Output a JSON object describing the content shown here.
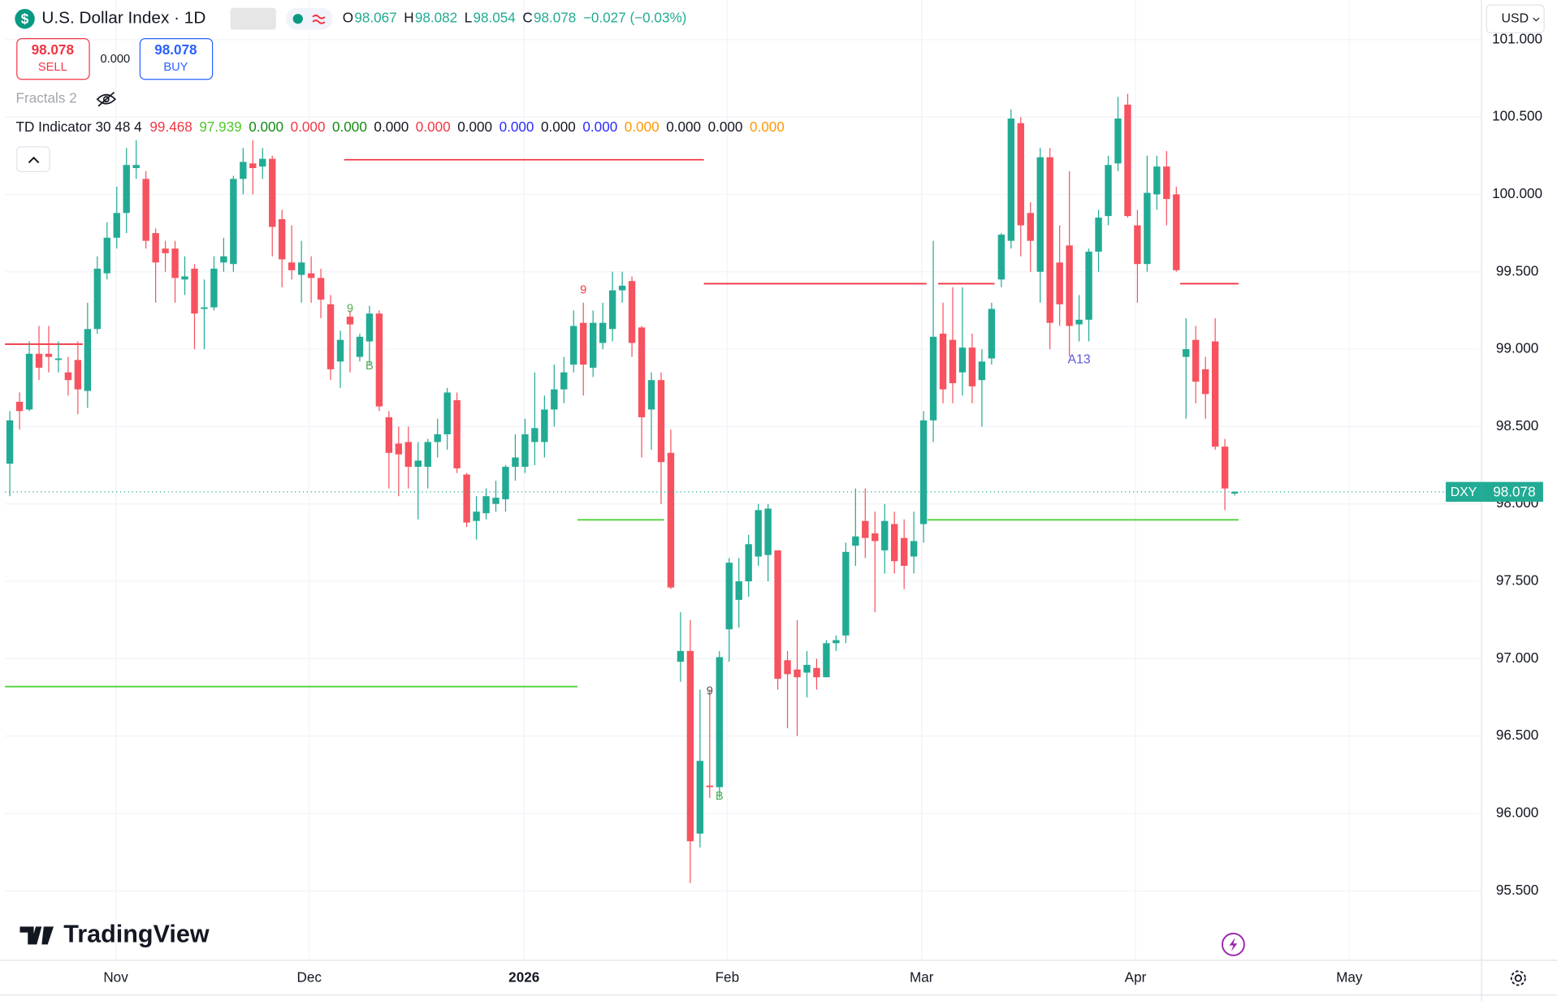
{
  "header": {
    "symbol": "U.S. Dollar Index · 1D",
    "ohlc_labels": [
      "O",
      "H",
      "L",
      "C"
    ],
    "change": "−0.027 (−0.03%)",
    "currency": "USD"
  },
  "trade": {
    "sell_price": "98.078",
    "sell": "SELL",
    "spread": "0.000",
    "buy_price": "98.078",
    "buy": "BUY"
  },
  "indicators": {
    "fractals": "Fractals 2",
    "td_name": "TD Indicator 30 48 4",
    "td_values": [
      {
        "text": "99.468",
        "color": "#f23645"
      },
      {
        "text": "97.939",
        "color": "#4cc92a"
      },
      {
        "text": "0.000",
        "color": "#138a13"
      },
      {
        "text": "0.000",
        "color": "#f23645"
      },
      {
        "text": "0.000",
        "color": "#138a13"
      },
      {
        "text": "0.000",
        "color": "#131722"
      },
      {
        "text": "0.000",
        "color": "#f23645"
      },
      {
        "text": "0.000",
        "color": "#131722"
      },
      {
        "text": "0.000",
        "color": "#2a2aff"
      },
      {
        "text": "0.000",
        "color": "#131722"
      },
      {
        "text": "0.000",
        "color": "#2a2aff"
      },
      {
        "text": "0.000",
        "color": "#ff9800"
      },
      {
        "text": "0.000",
        "color": "#131722"
      },
      {
        "text": "0.000",
        "color": "#131722"
      },
      {
        "text": "0.000",
        "color": "#ff9800"
      }
    ]
  },
  "logo": "TradingView",
  "symbol_tag": "DXY",
  "chart_data": {
    "type": "candlestick",
    "up_color": "#22ab94",
    "down_color": "#f7525f",
    "grid": true,
    "open": [
      98.26,
      98.66,
      98.61,
      98.97,
      98.97,
      98.93,
      98.85,
      98.93,
      98.73,
      99.13,
      99.49,
      99.72,
      99.88,
      100.17,
      100.1,
      99.75,
      99.65,
      99.65,
      99.45,
      99.52,
      99.26,
      99.27,
      99.56,
      99.55,
      100.1,
      100.2,
      100.18,
      100.23,
      99.84,
      99.56,
      99.48,
      99.49,
      99.46,
      99.29,
      98.92,
      99.21,
      98.95,
      99.05,
      99.23,
      98.56,
      98.39,
      98.4,
      98.24,
      98.24,
      98.4,
      98.45,
      98.67,
      98.19,
      97.89,
      97.94,
      98.0,
      98.03,
      98.24,
      98.24,
      98.4,
      98.4,
      98.61,
      98.74,
      98.9,
      99.17,
      98.88,
      99.04,
      99.13,
      99.38,
      99.44,
      99.14,
      98.61,
      98.8,
      98.33,
      96.98,
      97.05,
      95.87,
      96.18,
      96.17,
      97.19,
      97.38,
      97.5,
      97.66,
      97.67,
      97.7,
      96.99,
      96.93,
      96.91,
      96.94,
      96.88,
      97.1,
      97.15,
      97.73,
      97.89,
      97.81,
      97.7,
      97.87,
      97.78,
      97.66,
      97.87,
      98.54,
      99.1,
      99.06,
      98.85,
      99.01,
      98.8,
      98.94,
      99.45,
      99.7,
      100.46,
      99.88,
      99.5,
      100.24,
      99.56,
      99.67,
      99.16,
      99.19,
      99.63,
      99.86,
      100.2,
      100.58,
      99.8,
      99.55,
      100.0,
      100.18,
      100.0,
      98.95,
      99.06,
      98.87,
      99.05,
      98.37,
      98.067
    ],
    "high": [
      98.6,
      98.72,
      99.05,
      99.15,
      99.15,
      99.05,
      98.95,
      99.05,
      99.3,
      99.6,
      99.82,
      100.05,
      100.3,
      100.35,
      100.15,
      99.78,
      99.7,
      99.7,
      99.6,
      99.55,
      99.45,
      99.6,
      99.72,
      100.12,
      100.3,
      100.35,
      100.3,
      100.25,
      99.9,
      99.8,
      99.7,
      99.6,
      99.52,
      99.35,
      99.12,
      99.25,
      99.1,
      99.28,
      99.25,
      98.6,
      98.5,
      98.5,
      98.4,
      98.42,
      98.55,
      98.75,
      98.72,
      98.2,
      98.05,
      98.1,
      98.15,
      98.25,
      98.45,
      98.55,
      98.85,
      98.7,
      98.9,
      98.95,
      99.25,
      99.3,
      99.25,
      99.3,
      99.5,
      99.5,
      99.47,
      99.15,
      98.85,
      98.85,
      98.48,
      97.3,
      97.25,
      96.8,
      96.8,
      97.05,
      97.65,
      97.65,
      97.8,
      98.0,
      98.0,
      97.7,
      97.05,
      97.25,
      97.05,
      97.0,
      97.12,
      97.15,
      97.75,
      98.1,
      98.1,
      97.95,
      98.0,
      97.95,
      97.9,
      97.95,
      98.6,
      99.7,
      99.3,
      99.4,
      99.4,
      99.1,
      99.0,
      99.3,
      99.75,
      100.55,
      100.5,
      99.95,
      100.3,
      100.3,
      99.8,
      100.15,
      99.35,
      99.65,
      99.9,
      100.25,
      100.63,
      100.65,
      99.9,
      100.25,
      100.25,
      100.28,
      100.05,
      99.2,
      99.15,
      98.95,
      99.2,
      98.42,
      98.082
    ],
    "low": [
      98.05,
      98.48,
      98.6,
      98.8,
      98.85,
      98.85,
      98.7,
      98.58,
      98.62,
      99.1,
      99.45,
      99.65,
      99.75,
      100.1,
      99.65,
      99.3,
      99.5,
      99.3,
      99.35,
      99.0,
      99.0,
      99.25,
      99.5,
      99.5,
      100.0,
      100.0,
      100.1,
      99.6,
      99.4,
      99.45,
      99.3,
      99.3,
      99.2,
      98.8,
      98.75,
      98.85,
      98.92,
      98.9,
      98.6,
      98.1,
      98.05,
      98.1,
      97.9,
      98.1,
      98.3,
      98.35,
      98.2,
      97.85,
      97.77,
      97.9,
      97.95,
      97.95,
      98.15,
      98.2,
      98.25,
      98.3,
      98.5,
      98.65,
      98.85,
      98.7,
      98.82,
      99.0,
      99.05,
      99.3,
      98.95,
      98.3,
      98.35,
      98.0,
      97.45,
      96.85,
      95.55,
      95.78,
      96.1,
      96.1,
      96.98,
      97.2,
      97.4,
      97.6,
      97.5,
      96.8,
      96.55,
      96.5,
      96.75,
      96.8,
      96.88,
      97.05,
      97.1,
      97.6,
      97.65,
      97.3,
      97.55,
      97.55,
      97.45,
      97.55,
      97.75,
      98.4,
      98.65,
      98.65,
      98.7,
      98.65,
      98.5,
      98.9,
      99.4,
      99.65,
      99.6,
      99.5,
      99.3,
      99.0,
      99.15,
      98.95,
      99.05,
      99.05,
      99.5,
      99.8,
      100.15,
      99.85,
      99.3,
      99.5,
      99.9,
      99.8,
      99.5,
      98.55,
      98.65,
      98.55,
      98.35,
      97.96,
      98.054
    ],
    "close": [
      98.54,
      98.6,
      98.97,
      98.88,
      98.95,
      98.94,
      98.8,
      98.74,
      99.13,
      99.52,
      99.72,
      99.88,
      100.19,
      100.19,
      99.7,
      99.56,
      99.62,
      99.46,
      99.47,
      99.23,
      99.27,
      99.52,
      99.6,
      100.1,
      100.21,
      100.17,
      100.23,
      99.79,
      99.58,
      99.51,
      99.56,
      99.46,
      99.32,
      98.87,
      99.06,
      99.16,
      99.08,
      99.23,
      98.63,
      98.33,
      98.32,
      98.24,
      98.28,
      98.4,
      98.45,
      98.72,
      98.23,
      97.88,
      97.95,
      98.05,
      98.04,
      98.24,
      98.3,
      98.45,
      98.49,
      98.61,
      98.74,
      98.85,
      99.15,
      98.9,
      99.17,
      99.17,
      99.38,
      99.41,
      99.04,
      98.56,
      98.8,
      98.27,
      97.46,
      97.05,
      95.82,
      96.34,
      96.17,
      97.01,
      97.62,
      97.5,
      97.74,
      97.96,
      97.97,
      96.87,
      96.9,
      96.88,
      96.96,
      96.88,
      97.1,
      97.12,
      97.69,
      97.79,
      97.78,
      97.76,
      97.89,
      97.63,
      97.6,
      97.76,
      98.54,
      99.08,
      98.74,
      98.78,
      99.01,
      98.76,
      98.92,
      99.26,
      99.74,
      100.49,
      99.8,
      99.7,
      100.24,
      99.17,
      99.29,
      99.15,
      99.19,
      99.63,
      99.85,
      100.19,
      100.49,
      99.86,
      99.55,
      100.01,
      100.18,
      99.97,
      99.51,
      99.0,
      98.79,
      98.71,
      98.37,
      98.1,
      98.078
    ],
    "xlim": [
      -0.5,
      151.4
    ],
    "xticks": [
      {
        "value": 10.9,
        "label": "Nov"
      },
      {
        "value": 30.8,
        "label": "Dec"
      },
      {
        "value": 52.9,
        "label": "2026"
      },
      {
        "value": 73.8,
        "label": "Feb"
      },
      {
        "value": 93.8,
        "label": "Mar"
      },
      {
        "value": 115.8,
        "label": "Apr"
      },
      {
        "value": 137.8,
        "label": "May"
      }
    ],
    "ylim": [
      95.051,
      101.256
    ],
    "yticks": [
      {
        "value": 95.5,
        "label": "95.500"
      },
      {
        "value": 96,
        "label": "96.000"
      },
      {
        "value": 96.5,
        "label": "96.500"
      },
      {
        "value": 97,
        "label": "97.000"
      },
      {
        "value": 97.5,
        "label": "97.500"
      },
      {
        "value": 98,
        "label": "98.000"
      },
      {
        "value": 98.5,
        "label": "98.500"
      },
      {
        "value": 99,
        "label": "99.000"
      },
      {
        "value": 99.5,
        "label": "99.500"
      },
      {
        "value": 100,
        "label": "100.000"
      },
      {
        "value": 100.5,
        "label": "100.500"
      },
      {
        "value": 101,
        "label": "101.000"
      }
    ],
    "levels": [
      {
        "price": 100.224,
        "from": 34.4,
        "to": 71.4,
        "color": "#f23645"
      },
      {
        "price": 99.423,
        "from": 71.4,
        "to": 94.3,
        "color": "#f23645"
      },
      {
        "price": 99.423,
        "from": 95.5,
        "to": 101.3,
        "color": "#f23645"
      },
      {
        "price": 99.423,
        "from": 120.4,
        "to": 126.4,
        "color": "#f23645"
      },
      {
        "price": 99.032,
        "from": -0.5,
        "to": 7.5,
        "color": "#f23645"
      },
      {
        "price": 97.897,
        "from": 58.4,
        "to": 67.3,
        "color": "#4cd137"
      },
      {
        "price": 97.897,
        "from": 94.4,
        "to": 126.4,
        "color": "#4cd137"
      },
      {
        "price": 96.82,
        "from": -0.5,
        "to": 58.4,
        "color": "#4cd137"
      }
    ],
    "annotations": [
      {
        "text": "9",
        "index": 35,
        "price": 99.26,
        "color": "#4caf50"
      },
      {
        "text": "9",
        "index": 59,
        "price": 99.38,
        "color": "#f23645"
      },
      {
        "text": "9",
        "index": 72,
        "price": 96.79,
        "color": "#555555"
      },
      {
        "text": "B",
        "index": 37,
        "price": 98.89,
        "color": "#4caf50"
      },
      {
        "text": "B",
        "index": 73,
        "price": 96.11,
        "color": "#4caf50"
      },
      {
        "text": "A13",
        "index": 110,
        "price": 98.93,
        "color": "#5b5bd6"
      }
    ]
  }
}
